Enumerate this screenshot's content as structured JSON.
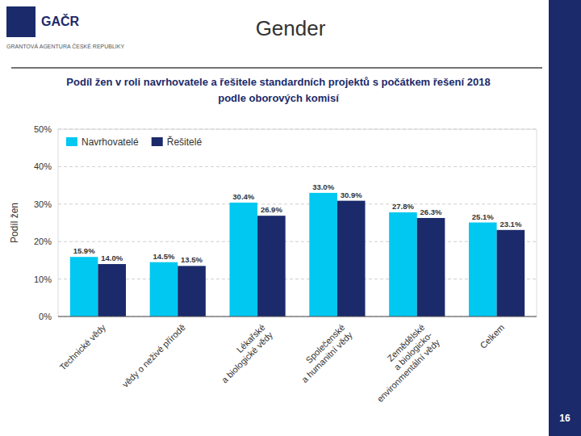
{
  "chart_data": {
    "type": "bar",
    "title": "Gender",
    "subtitle": [
      "Podíl žen v roli navrhovatele a řešitele standardních projektů s počátkem řešení 2018",
      "podle oborových komisí"
    ],
    "categories": [
      "Technické vědy",
      "vědy o neživé přírodě",
      "Lékařské\na biologické vědy",
      "Společenské\na humanitní vědy",
      "Zemědělské\na biologicko-\nenvironmentální vědy",
      "Celkem"
    ],
    "series": [
      {
        "name": "Navrhovatelé",
        "color": "#00C8F0",
        "values": [
          15.9,
          14.5,
          30.4,
          33.0,
          27.8,
          25.1
        ],
        "value_labels": [
          "15.9%",
          "14.5%",
          "30.4%",
          "33.0%",
          "27.8%",
          "25.1%"
        ]
      },
      {
        "name": "Řešitelé",
        "color": "#1B2A6B",
        "values": [
          14.0,
          13.5,
          26.9,
          30.9,
          26.3,
          23.1
        ],
        "value_labels": [
          "14.0%",
          "13.5%",
          "26.9%",
          "30.9%",
          "26.3%",
          "23.1%"
        ]
      }
    ],
    "ylabel": "Podíl žen",
    "ylim": [
      0,
      50
    ],
    "yticks": [
      {
        "value": 0,
        "label": "0%"
      },
      {
        "value": 10,
        "label": "10%"
      },
      {
        "value": 20,
        "label": "20%"
      },
      {
        "value": 30,
        "label": "30%"
      },
      {
        "value": 40,
        "label": "40%"
      },
      {
        "value": 50,
        "label": "50%"
      }
    ],
    "grid": true,
    "legend": "upper left",
    "data_labels": true,
    "annotations": [
      "GAČR",
      "GRANTOVÁ AGENTURA ČESKÉ REPUBLIKY",
      "16"
    ]
  }
}
